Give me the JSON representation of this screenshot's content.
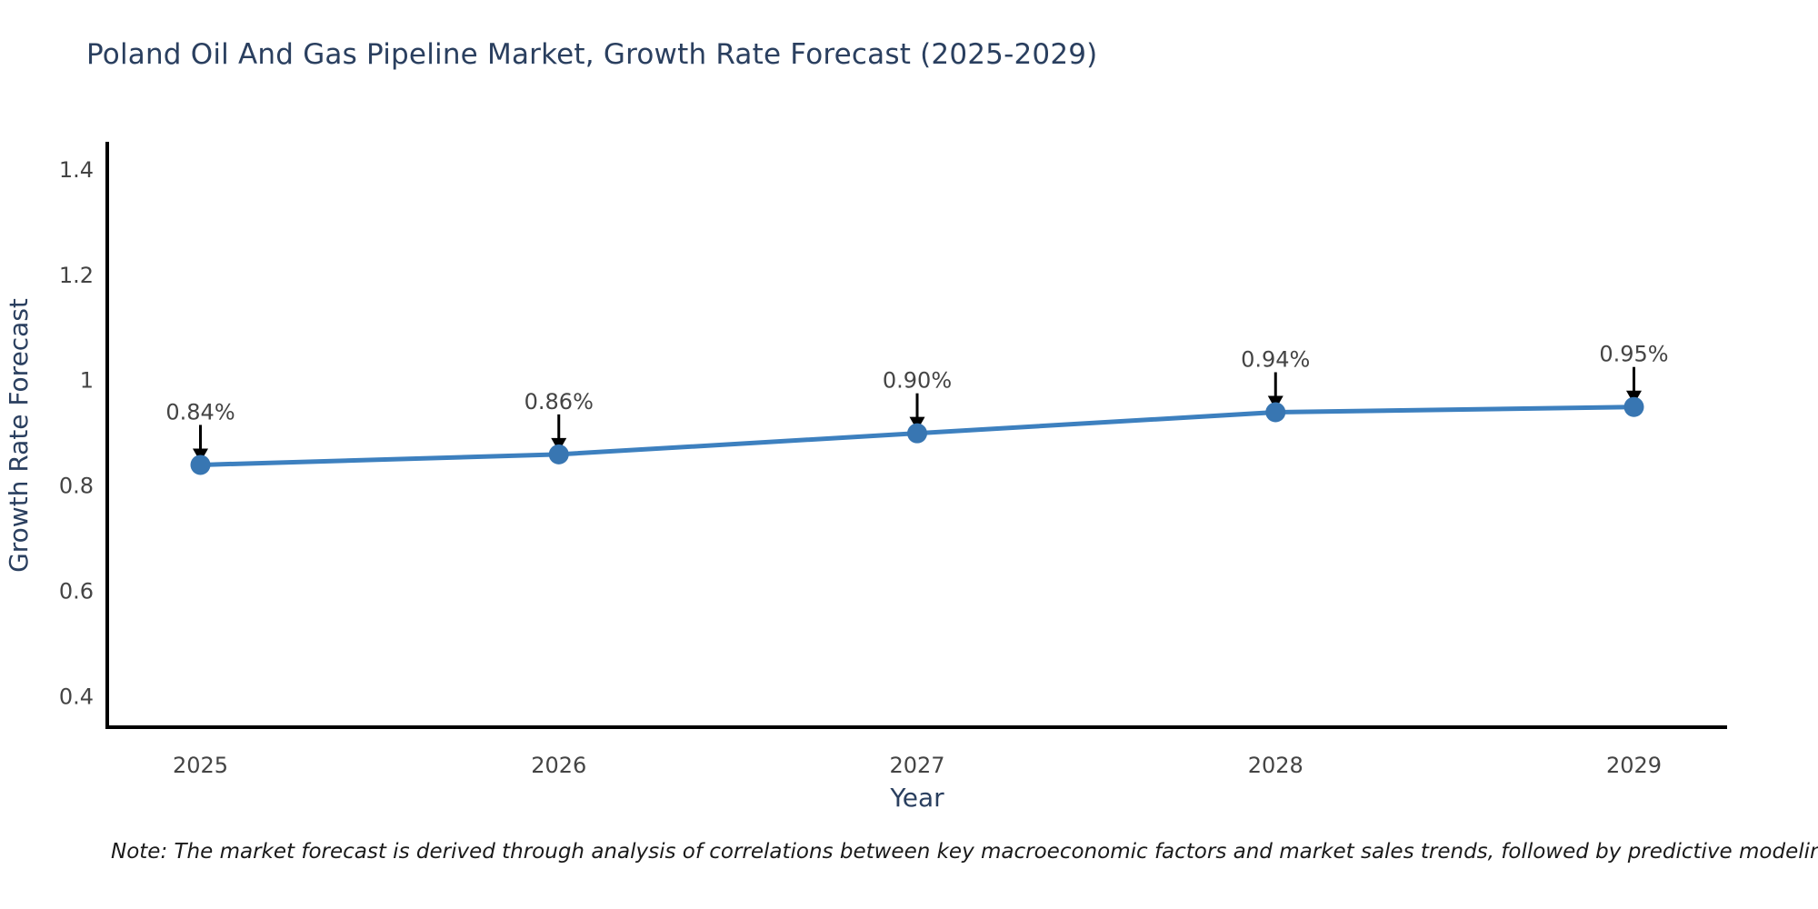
{
  "note": "Note: The market forecast is derived through analysis of correlations between key macroeconomic factors and market sales trends, followed by predictive modeling to project future sales",
  "chart_data": {
    "type": "line",
    "title": "Poland Oil And Gas Pipeline Market, Growth Rate Forecast (2025-2029)",
    "xlabel": "Year",
    "ylabel": "Growth Rate Forecast",
    "x": [
      2025,
      2026,
      2027,
      2028,
      2029
    ],
    "series": [
      {
        "name": "Growth Rate Forecast",
        "values": [
          0.84,
          0.86,
          0.9,
          0.94,
          0.95
        ],
        "point_labels": [
          "0.84%",
          "0.86%",
          "0.90%",
          "0.94%",
          "0.95%"
        ]
      }
    ],
    "yticks": [
      0.4,
      0.6,
      0.8,
      1,
      1.2,
      1.4
    ],
    "ylim": [
      0.342,
      1.45
    ],
    "xlim": [
      2024.74,
      2029.26
    ],
    "grid": false,
    "legend_position": "none",
    "annotations_have_arrows": true,
    "colors": {
      "line": "#3d80bf",
      "marker": "#3876b2",
      "axis": "#000000",
      "title": "#2a3f5f",
      "axis_label": "#2a3f5f",
      "tick_label": "#444444",
      "annotation_text": "#444444",
      "arrow": "#000000",
      "background": "#ffffff"
    }
  }
}
